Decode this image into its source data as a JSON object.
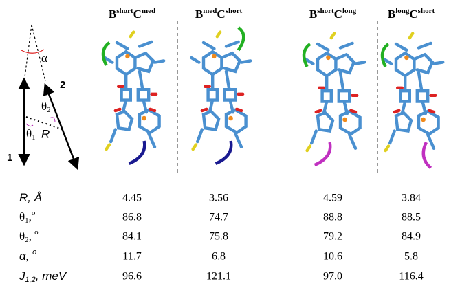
{
  "diagram": {
    "alpha": "α",
    "vector_1": "1",
    "vector_2": "2",
    "theta_2": {
      "text": "θ",
      "sub": "2"
    },
    "theta_1": {
      "text": "θ",
      "sub": "1"
    },
    "distance": "R"
  },
  "table": {
    "columns": [
      {
        "a": "B",
        "a_sup": "short",
        "b": "C",
        "b_sup": "med"
      },
      {
        "a": "B",
        "a_sup": "med",
        "b": "C",
        "b_sup": "short"
      },
      {
        "a": "B",
        "a_sup": "short",
        "b": "C",
        "b_sup": "long"
      },
      {
        "a": "B",
        "a_sup": "long",
        "b": "C",
        "b_sup": "short"
      }
    ],
    "rows": [
      {
        "label": {
          "text": "R, Å"
        },
        "values": [
          "4.45",
          "3.56",
          "4.59",
          "3.84"
        ]
      },
      {
        "label": {
          "text": "θ",
          "sub": "1",
          "after": ",",
          "sup": "o"
        },
        "values": [
          "86.8",
          "74.7",
          "88.8",
          "88.5"
        ]
      },
      {
        "label": {
          "text": "θ",
          "sub": "2",
          "after": ", ",
          "sup": "o"
        },
        "values": [
          "84.1",
          "75.8",
          "79.2",
          "84.9"
        ]
      },
      {
        "label": {
          "text": "α, ",
          "sup": "o"
        },
        "values": [
          "11.7",
          "6.8",
          "10.6",
          "5.8"
        ]
      },
      {
        "label": {
          "text": "J",
          "sub": "1,2",
          "after": ", meV"
        },
        "values": [
          "96.6",
          "121.1",
          "97.0",
          "116.4"
        ]
      }
    ]
  }
}
